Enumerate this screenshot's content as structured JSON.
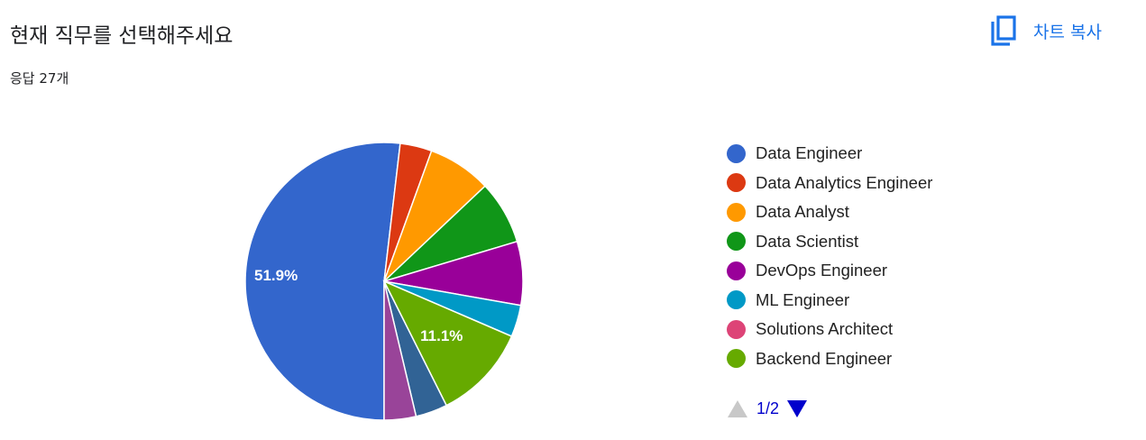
{
  "header": {
    "title": "현재 직무를 선택해주세요",
    "response_count": "응답 27개",
    "copy_chart_label": "차트 복사",
    "copy_icon": "copy-icon"
  },
  "colors": {
    "accent": "#1a73e8",
    "pager_active": "#0000cc",
    "pager_disabled": "#c8c8c8"
  },
  "chart_data": {
    "type": "pie",
    "title": "현재 직무를 선택해주세요",
    "responses": 27,
    "slices": [
      {
        "name": "Data Engineer",
        "count": 14,
        "percent": 51.9,
        "label": "51.9%",
        "color": "#3366cc"
      },
      {
        "name": "Data Analytics Engineer",
        "count": 1,
        "percent": 3.7,
        "label": "",
        "color": "#dc3912"
      },
      {
        "name": "Data Analyst",
        "count": 2,
        "percent": 7.4,
        "label": "",
        "color": "#ff9900"
      },
      {
        "name": "Data Scientist",
        "count": 2,
        "percent": 7.4,
        "label": "",
        "color": "#109618"
      },
      {
        "name": "DevOps Engineer",
        "count": 2,
        "percent": 7.4,
        "label": "",
        "color": "#990099"
      },
      {
        "name": "ML Engineer",
        "count": 1,
        "percent": 3.7,
        "label": "",
        "color": "#0099c6"
      },
      {
        "name": "Solutions Architect",
        "count": 0,
        "percent": 0,
        "label": "",
        "color": "#dd4477"
      },
      {
        "name": "Backend Engineer",
        "count": 3,
        "percent": 11.1,
        "label": "11.1%",
        "color": "#66aa00"
      },
      {
        "name": "",
        "count": 1,
        "percent": 3.7,
        "label": "",
        "color": "#316395"
      },
      {
        "name": "",
        "count": 1,
        "percent": 3.7,
        "label": "",
        "color": "#994499"
      }
    ],
    "legend": {
      "items": [
        "Data Engineer",
        "Data Analytics Engineer",
        "Data Analyst",
        "Data Scientist",
        "DevOps Engineer",
        "ML Engineer",
        "Solutions Architect",
        "Backend Engineer"
      ],
      "page": "1/2",
      "placement": "right"
    }
  }
}
